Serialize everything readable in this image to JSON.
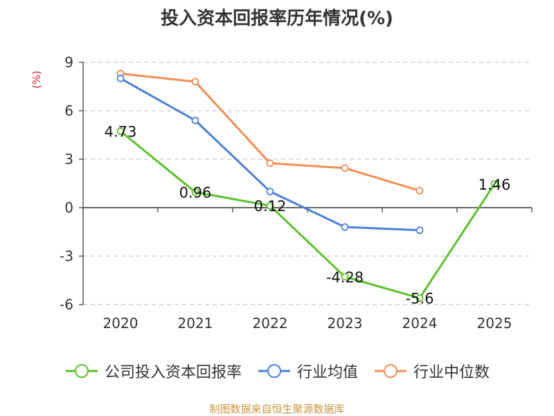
{
  "chart_data": {
    "type": "line",
    "title": "投入资本回报率历年情况(%)",
    "ylabel": "(%)",
    "categories": [
      "2020",
      "2021",
      "2022",
      "2023",
      "2024",
      "2025"
    ],
    "ylim": [
      -6,
      9
    ],
    "yticks": [
      9,
      6,
      3,
      0,
      -3,
      -6
    ],
    "grid": true,
    "legend_position": "bottom",
    "series": [
      {
        "name": "公司投入资本回报率",
        "color": "#5ac02a",
        "values": [
          4.73,
          0.96,
          0.12,
          -4.28,
          -5.6,
          1.46
        ],
        "labels": [
          "4.73",
          "0.96",
          "0.12",
          "-4.28",
          "-5.6",
          "1.46"
        ]
      },
      {
        "name": "行业均值",
        "color": "#4a7fd8",
        "values": [
          8.0,
          5.4,
          1.0,
          -1.2,
          -1.4,
          null
        ]
      },
      {
        "name": "行业中位数",
        "color": "#f28c55",
        "values": [
          8.3,
          7.8,
          2.75,
          2.45,
          1.05,
          null
        ]
      }
    ]
  },
  "source_note": "制图数据来自恒生聚源数据库"
}
